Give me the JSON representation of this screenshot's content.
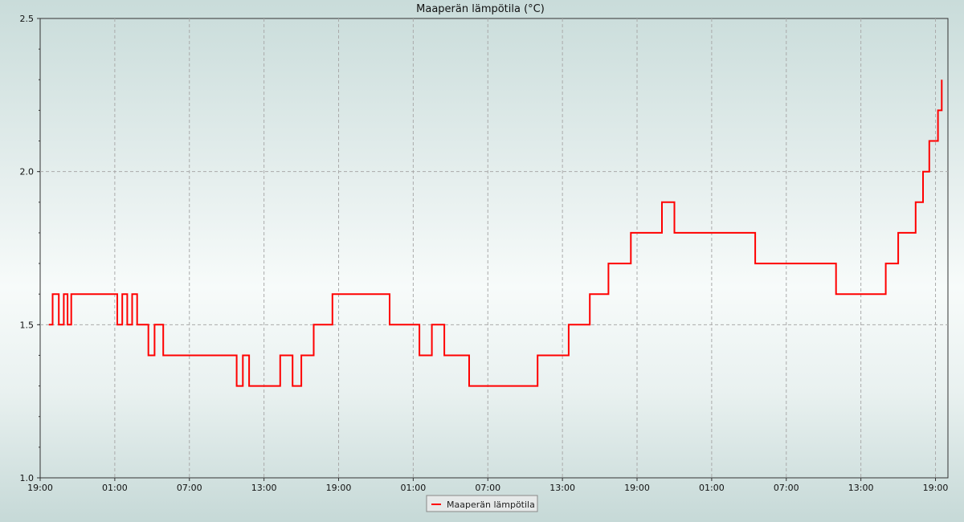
{
  "chart_data": {
    "type": "line",
    "title": "Maaperän lämpötila (°C)",
    "xlabel": "",
    "ylabel": "",
    "ylim": [
      1.0,
      2.5
    ],
    "y_ticks": [
      "1.0",
      "1.5",
      "2.0",
      "2.5"
    ],
    "x_tick_labels": [
      "19:00",
      "01:00",
      "07:00",
      "13:00",
      "19:00",
      "01:00",
      "07:00",
      "13:00",
      "19:00",
      "01:00",
      "07:00",
      "13:00",
      "19:00"
    ],
    "x_unit": "hours since first 19:00",
    "xlim": [
      0,
      73
    ],
    "grid": true,
    "legend_position": "bottom-center",
    "series": [
      {
        "name": "Maaperän lämpötila",
        "color": "#ff0000",
        "step": true,
        "x": [
          0.7,
          1.0,
          1.5,
          1.9,
          2.2,
          2.5,
          5.9,
          6.2,
          6.6,
          7.0,
          7.4,
          7.8,
          8.3,
          8.7,
          9.2,
          9.9,
          10.5,
          11.0,
          11.5,
          12.0,
          13.0,
          14.0,
          15.0,
          15.8,
          16.3,
          16.8,
          17.3,
          18.5,
          19.3,
          20.3,
          21.0,
          21.5,
          22.0,
          23.0,
          23.5,
          24.0,
          27.5,
          28.1,
          29.5,
          30.5,
          31.5,
          32.5,
          33.5,
          34.5,
          35.5,
          37.0,
          38.5,
          40.0,
          40.8,
          42.5,
          43.5,
          44.2,
          45.0,
          45.7,
          46.5,
          47.5,
          49.0,
          50.0,
          51.0,
          53.0,
          55.0,
          56.0,
          57.5,
          60.0,
          62.0,
          64.0,
          64.9,
          66.0,
          67.2,
          68.0,
          69.0,
          69.8,
          70.4,
          71.0,
          71.5,
          72.2,
          72.5
        ],
        "y": [
          1.5,
          1.6,
          1.5,
          1.6,
          1.5,
          1.6,
          1.6,
          1.5,
          1.6,
          1.5,
          1.6,
          1.5,
          1.5,
          1.4,
          1.5,
          1.4,
          1.4,
          1.4,
          1.4,
          1.4,
          1.4,
          1.4,
          1.4,
          1.3,
          1.4,
          1.3,
          1.3,
          1.3,
          1.4,
          1.3,
          1.4,
          1.4,
          1.5,
          1.5,
          1.6,
          1.6,
          1.6,
          1.5,
          1.5,
          1.4,
          1.5,
          1.4,
          1.4,
          1.3,
          1.3,
          1.3,
          1.3,
          1.4,
          1.4,
          1.5,
          1.5,
          1.6,
          1.6,
          1.7,
          1.7,
          1.8,
          1.8,
          1.9,
          1.8,
          1.8,
          1.8,
          1.8,
          1.7,
          1.7,
          1.7,
          1.6,
          1.6,
          1.6,
          1.6,
          1.7,
          1.8,
          1.8,
          1.9,
          2.0,
          2.1,
          2.2,
          2.3
        ]
      }
    ]
  }
}
